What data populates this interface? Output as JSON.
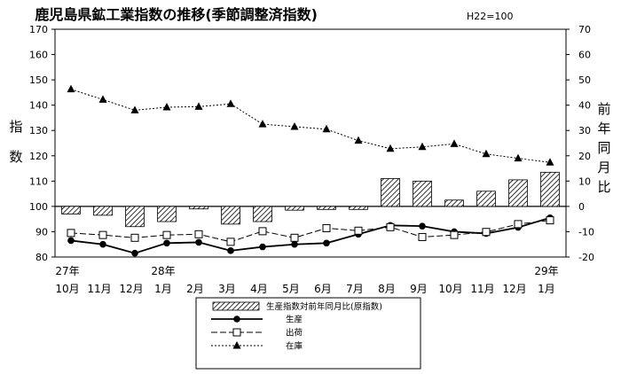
{
  "chart_data": {
    "type": "bar+line",
    "title": "鹿児島県鉱工業指数の推移(季節調整済指数)",
    "base_note": "H22=100",
    "left_axis_label": [
      "指",
      "数"
    ],
    "right_axis_label": [
      "前",
      "年",
      "同",
      "月",
      "比"
    ],
    "left_axis": {
      "min": 80,
      "max": 170,
      "ticks": [
        170,
        160,
        150,
        140,
        130,
        120,
        110,
        100,
        90,
        80
      ]
    },
    "right_axis": {
      "min": -20,
      "max": 70,
      "ticks": [
        70,
        60,
        50,
        40,
        30,
        20,
        10,
        0,
        -10,
        -20
      ]
    },
    "year_labels": [
      {
        "index": 0,
        "text": "27年"
      },
      {
        "index": 3,
        "text": "28年"
      },
      {
        "index": 15,
        "text": "29年"
      }
    ],
    "categories": [
      "10月",
      "11月",
      "12月",
      "1月",
      "2月",
      "3月",
      "4月",
      "5月",
      "6月",
      "7月",
      "8月",
      "9月",
      "10月",
      "11月",
      "12月",
      "1月"
    ],
    "bars": {
      "name": "生産指数対前年同月比(原指数)",
      "axis": "right",
      "values": [
        -3,
        -3.5,
        -8,
        -6,
        -1,
        -7,
        -6,
        -1.5,
        -1.2,
        -1.2,
        11,
        10,
        2.5,
        6,
        10.5,
        13.5
      ]
    },
    "series": [
      {
        "name": "生産",
        "axis": "left",
        "marker": "filled-circle",
        "line": "solid",
        "values": [
          86.5,
          85,
          81.5,
          85.5,
          85.8,
          82.5,
          84,
          85,
          85.5,
          89,
          92.5,
          92.2,
          90,
          89.3,
          91.7,
          95.5
        ]
      },
      {
        "name": "出荷",
        "axis": "left",
        "marker": "open-square",
        "line": "dashed",
        "values": [
          89.5,
          88.7,
          87.6,
          88.7,
          89,
          86,
          90.2,
          87.6,
          91.4,
          90.4,
          91.8,
          87.9,
          88.7,
          89.9,
          93,
          94.5
        ]
      },
      {
        "name": "在庫",
        "axis": "left",
        "marker": "filled-triangle",
        "line": "dotted",
        "values": [
          146.3,
          142.2,
          138,
          139.2,
          139.4,
          140.5,
          132.5,
          131.5,
          130.5,
          126,
          122.8,
          123.5,
          124.7,
          120.7,
          119,
          117.4
        ]
      }
    ],
    "legend": [
      "生産指数対前年同月比(原指数)",
      "生産",
      "出荷",
      "在庫"
    ]
  }
}
